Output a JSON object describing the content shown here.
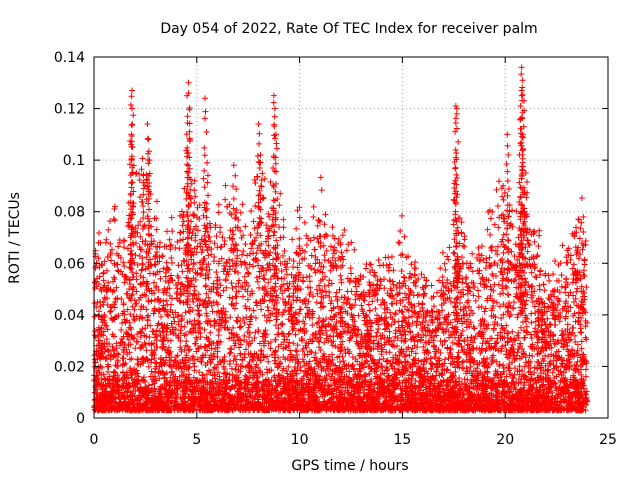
{
  "chart_data": {
    "type": "scatter",
    "title": "Day 054 of 2022, Rate Of TEC Index for receiver palm",
    "xlabel": "GPS time / hours",
    "ylabel": "ROTI / TECUs",
    "xlim": [
      0,
      25
    ],
    "ylim": [
      0,
      0.14
    ],
    "x_ticks": [
      0,
      5,
      10,
      15,
      20,
      25
    ],
    "x_tick_labels": [
      "0",
      "5",
      "10",
      "15",
      "20",
      "25"
    ],
    "y_ticks": [
      0,
      0.02,
      0.04,
      0.06,
      0.08,
      0.1,
      0.12,
      0.14
    ],
    "y_tick_labels": [
      "0",
      "0.02",
      "0.04",
      "0.06",
      "0.08",
      "0.1",
      "0.12",
      "0.14"
    ],
    "grid": true,
    "marker": "+",
    "color": "#ff0000",
    "series": [
      {
        "name": "ROTI",
        "envelope_hours": [
          0,
          0.5,
          1,
          1.5,
          2,
          2.5,
          3,
          3.5,
          4,
          4.5,
          5,
          5.5,
          6,
          6.5,
          7,
          7.5,
          8,
          8.5,
          9,
          9.5,
          10,
          10.5,
          11,
          11.5,
          12,
          12.5,
          13,
          13.5,
          14,
          14.5,
          15,
          15.5,
          16,
          16.5,
          17,
          17.5,
          18,
          18.5,
          19,
          19.5,
          20,
          20.5,
          21,
          21.5,
          22,
          22.5,
          23,
          23.5,
          24
        ],
        "envelope_max": [
          0.065,
          0.062,
          0.07,
          0.06,
          0.095,
          0.09,
          0.075,
          0.065,
          0.07,
          0.085,
          0.08,
          0.075,
          0.07,
          0.085,
          0.08,
          0.065,
          0.1,
          0.08,
          0.075,
          0.06,
          0.07,
          0.065,
          0.085,
          0.06,
          0.07,
          0.06,
          0.05,
          0.055,
          0.06,
          0.055,
          0.07,
          0.06,
          0.05,
          0.045,
          0.055,
          0.065,
          0.07,
          0.05,
          0.065,
          0.085,
          0.08,
          0.075,
          0.08,
          0.07,
          0.05,
          0.055,
          0.065,
          0.075,
          0.07
        ],
        "peaks": [
          {
            "x": 1.85,
            "y": 0.127
          },
          {
            "x": 1.85,
            "y": 0.12
          },
          {
            "x": 1.82,
            "y": 0.11
          },
          {
            "x": 1.87,
            "y": 0.105
          },
          {
            "x": 2.6,
            "y": 0.114
          },
          {
            "x": 2.65,
            "y": 0.108
          },
          {
            "x": 2.7,
            "y": 0.1
          },
          {
            "x": 2.4,
            "y": 0.094
          },
          {
            "x": 4.6,
            "y": 0.13
          },
          {
            "x": 4.6,
            "y": 0.126
          },
          {
            "x": 4.55,
            "y": 0.117
          },
          {
            "x": 4.65,
            "y": 0.111
          },
          {
            "x": 5.4,
            "y": 0.124
          },
          {
            "x": 5.5,
            "y": 0.099
          },
          {
            "x": 4.9,
            "y": 0.092
          },
          {
            "x": 6.8,
            "y": 0.098
          },
          {
            "x": 8.0,
            "y": 0.114
          },
          {
            "x": 8.1,
            "y": 0.102
          },
          {
            "x": 8.75,
            "y": 0.125
          },
          {
            "x": 8.8,
            "y": 0.12
          },
          {
            "x": 8.85,
            "y": 0.11
          },
          {
            "x": 17.6,
            "y": 0.121
          },
          {
            "x": 17.65,
            "y": 0.12
          },
          {
            "x": 17.6,
            "y": 0.101
          },
          {
            "x": 17.55,
            "y": 0.087
          },
          {
            "x": 20.1,
            "y": 0.11
          },
          {
            "x": 20.15,
            "y": 0.102
          },
          {
            "x": 19.9,
            "y": 0.09
          },
          {
            "x": 20.8,
            "y": 0.136
          },
          {
            "x": 20.85,
            "y": 0.131
          },
          {
            "x": 20.8,
            "y": 0.127
          },
          {
            "x": 20.75,
            "y": 0.121
          },
          {
            "x": 20.9,
            "y": 0.113
          },
          {
            "x": 21.0,
            "y": 0.095
          },
          {
            "x": 11.6,
            "y": 0.074
          },
          {
            "x": 23.8,
            "y": 0.078
          }
        ]
      }
    ]
  }
}
